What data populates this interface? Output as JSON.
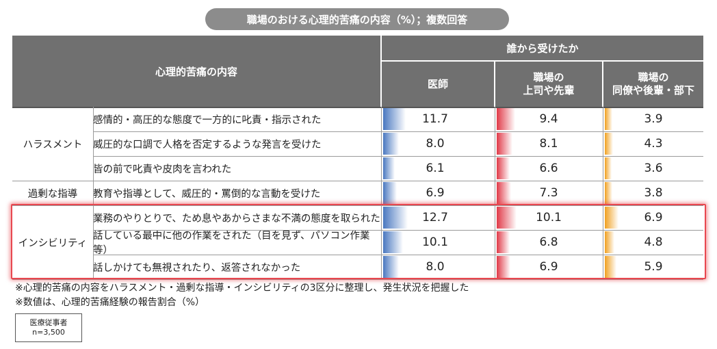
{
  "title": "職場のおける心理的苦痛の内容（%）；複数回答",
  "header": {
    "content_label": "心理的苦痛の内容",
    "group_label": "誰から受けたか",
    "columns": [
      "医師",
      "職場の\n上司や先輩",
      "職場の\n同僚や後輩・部下"
    ]
  },
  "colors": {
    "header_bg": "#707070",
    "doctor": "#4a78c0",
    "superior": "#e03a48",
    "colleague": "#f0a020",
    "highlight": "#e8474f"
  },
  "categories": [
    {
      "label": "ハラスメント",
      "rows": [
        0,
        1,
        2
      ]
    },
    {
      "label": "過剰な指導",
      "rows": [
        3
      ]
    },
    {
      "label": "インシビリティ",
      "rows": [
        4,
        5,
        6
      ]
    }
  ],
  "chart_data": {
    "type": "table",
    "rows": [
      {
        "item": "感情的・高圧的な態度で一方的に叱責・指示された",
        "doctor": 11.7,
        "superior": 9.4,
        "colleague": 3.9
      },
      {
        "item": "威圧的な口調で人格を否定するような発言を受けた",
        "doctor": 8.0,
        "superior": 8.1,
        "colleague": 4.3
      },
      {
        "item": "皆の前で叱責や皮肉を言われた",
        "doctor": 6.1,
        "superior": 6.6,
        "colleague": 3.6
      },
      {
        "item": "教育や指導として、威圧的・罵倒的な言動を受けた",
        "doctor": 6.9,
        "superior": 7.3,
        "colleague": 3.8
      },
      {
        "item": "業務のやりとりで、ため息やあからさまな不満の態度を取られた",
        "doctor": 12.7,
        "superior": 10.1,
        "colleague": 6.9
      },
      {
        "item": "話している最中に他の作業をされた（目を見ず、パソコン作業等）",
        "doctor": 10.1,
        "superior": 6.8,
        "colleague": 4.8
      },
      {
        "item": "話しかけても無視されたり、返答されなかった",
        "doctor": 8.0,
        "superior": 6.9,
        "colleague": 5.9
      }
    ],
    "value_format": "0.0"
  },
  "notes": [
    "※心理的苦痛の内容をハラスメント・過剰な指導・インシビリティの3区分に整理し、発生状況を把握した",
    "※数値は、心理的苦痛経験の報告割合（%）"
  ],
  "sample": {
    "line1": "医療従事者",
    "line2": "n=3,500"
  }
}
